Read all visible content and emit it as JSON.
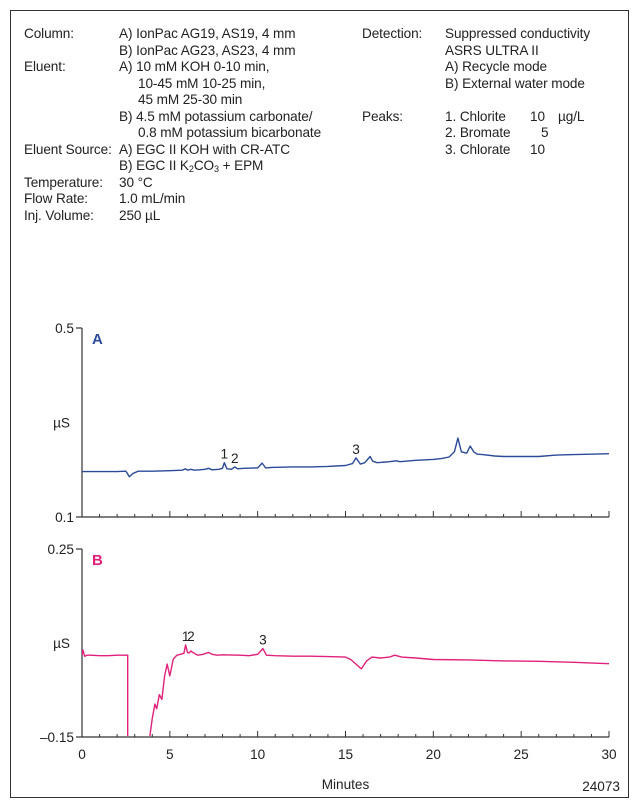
{
  "conditions": {
    "column": {
      "label": "Column:",
      "lines": [
        "A) IonPac AG19, AS19, 4 mm",
        "B) IonPac AG23, AS23, 4 mm"
      ]
    },
    "eluent": {
      "label": "Eluent:",
      "lines": [
        "A) 10 mM KOH 0-10 min,",
        "10-45 mM 10-25 min,",
        "45 mM 25-30 min",
        "B) 4.5 mM potassium carbonate/",
        "0.8 mM potassium bicarbonate"
      ]
    },
    "eluent_source": {
      "label": "Eluent Source:",
      "line_a": "A) EGC II KOH with CR-ATC",
      "line_b_prefix": "B) EGC II K",
      "line_b_sub1": "2",
      "line_b_mid": "CO",
      "line_b_sub2": "3",
      "line_b_suffix": " + EPM"
    },
    "temperature": {
      "label": "Temperature:",
      "value": "30 °C"
    },
    "flow_rate": {
      "label": "Flow Rate:",
      "value": "1.0 mL/min"
    },
    "inj_volume": {
      "label": "Inj. Volume:",
      "value": "250 µL"
    },
    "detection": {
      "label": "Detection:",
      "lines": [
        "Suppressed conductivity",
        "ASRS ULTRA II",
        "A) Recycle mode",
        "B) External water mode"
      ]
    },
    "peaks": {
      "label": "Peaks:",
      "items": [
        {
          "name": "1. Chlorite",
          "amount": "10",
          "unit": "µg/L"
        },
        {
          "name": "2. Bromate",
          "amount": "5",
          "unit": ""
        },
        {
          "name": "3. Chlorate",
          "amount": "10",
          "unit": ""
        }
      ]
    }
  },
  "footer_code": "24073",
  "colors": {
    "panel_a": "#2b4a9a",
    "panel_b": "#e0207a",
    "axis": "#333333"
  },
  "chart_data": [
    {
      "type": "line",
      "panel_label": "A",
      "ylabel": "µS",
      "ytick_labels": [
        "0.5",
        "0.1"
      ],
      "ylim": [
        0.1,
        0.5
      ],
      "xlim": [
        0,
        30
      ],
      "grid": false,
      "peak_labels": [
        {
          "text": "1",
          "x": 8.1
        },
        {
          "text": "2",
          "x": 8.7
        },
        {
          "text": "3",
          "x": 15.6
        }
      ],
      "series": [
        {
          "x": [
            0,
            1,
            2,
            2.5,
            2.7,
            2.9,
            3.2,
            4,
            5,
            5.7,
            5.9,
            6.0,
            6.2,
            6.4,
            6.7,
            7.0,
            7.2,
            7.4,
            7.8,
            8.0,
            8.1,
            8.25,
            8.5,
            8.7,
            8.85,
            9.2,
            10.0,
            10.25,
            10.45,
            10.8,
            12,
            13,
            14,
            15,
            15.4,
            15.6,
            15.85,
            16.1,
            16.4,
            16.55,
            16.8,
            17.5,
            17.9,
            18.1,
            19,
            20,
            20.5,
            20.9,
            21.2,
            21.4,
            21.6,
            21.9,
            22.1,
            22.3,
            22.5,
            22.8,
            23.5,
            24,
            26,
            27,
            28,
            29,
            30
          ],
          "y": [
            0.196,
            0.196,
            0.196,
            0.197,
            0.185,
            0.192,
            0.197,
            0.197,
            0.198,
            0.199,
            0.202,
            0.199,
            0.201,
            0.199,
            0.2,
            0.201,
            0.203,
            0.2,
            0.201,
            0.203,
            0.215,
            0.202,
            0.201,
            0.206,
            0.202,
            0.203,
            0.204,
            0.214,
            0.204,
            0.205,
            0.206,
            0.206,
            0.207,
            0.209,
            0.213,
            0.225,
            0.212,
            0.215,
            0.228,
            0.218,
            0.215,
            0.217,
            0.219,
            0.217,
            0.22,
            0.222,
            0.224,
            0.227,
            0.238,
            0.267,
            0.238,
            0.235,
            0.25,
            0.238,
            0.233,
            0.232,
            0.229,
            0.228,
            0.228,
            0.231,
            0.232,
            0.233,
            0.234
          ]
        }
      ]
    },
    {
      "type": "line",
      "panel_label": "B",
      "ylabel": "µS",
      "ytick_labels": [
        "0.25",
        "–0.15"
      ],
      "ylim": [
        -0.15,
        0.25
      ],
      "xlim": [
        0,
        30
      ],
      "xticks": [
        0,
        5,
        10,
        15,
        20,
        25,
        30
      ],
      "xlabel": "Minutes",
      "grid": false,
      "peak_labels": [
        {
          "text": "1",
          "x": 5.9
        },
        {
          "text": "2",
          "x": 6.2
        },
        {
          "text": "3",
          "x": 10.3
        }
      ],
      "series": [
        {
          "x": [
            0,
            0.05,
            0.15,
            0.3,
            0.5,
            1,
            1.5,
            2,
            2.5,
            2.6,
            2.6,
            3.8,
            4.0,
            4.15,
            4.25,
            4.4,
            4.55,
            4.7,
            4.85,
            5.0,
            5.2,
            5.4,
            5.6,
            5.8,
            5.9,
            6.0,
            6.1,
            6.2,
            6.35,
            6.6,
            6.9,
            7.2,
            7.4,
            7.7,
            8,
            9,
            9.5,
            10.0,
            10.3,
            10.5,
            11,
            12,
            13,
            14,
            15,
            15.3,
            15.6,
            15.9,
            16.2,
            16.5,
            17,
            17.5,
            17.8,
            18.2,
            19,
            20,
            22,
            24,
            26,
            28,
            30
          ],
          "y": [
            0.024,
            0.035,
            0.022,
            0.024,
            0.024,
            0.023,
            0.023,
            0.024,
            0.024,
            0.024,
            -0.165,
            -0.165,
            -0.11,
            -0.08,
            -0.09,
            -0.06,
            -0.07,
            -0.02,
            0.005,
            -0.02,
            0.016,
            0.024,
            0.026,
            0.028,
            0.046,
            0.03,
            0.029,
            0.033,
            0.029,
            0.024,
            0.026,
            0.03,
            0.026,
            0.024,
            0.025,
            0.024,
            0.023,
            0.026,
            0.038,
            0.024,
            0.023,
            0.022,
            0.022,
            0.021,
            0.02,
            0.015,
            0.005,
            -0.005,
            0.012,
            0.02,
            0.018,
            0.02,
            0.024,
            0.02,
            0.018,
            0.015,
            0.014,
            0.012,
            0.011,
            0.009,
            0.006
          ]
        }
      ]
    }
  ]
}
